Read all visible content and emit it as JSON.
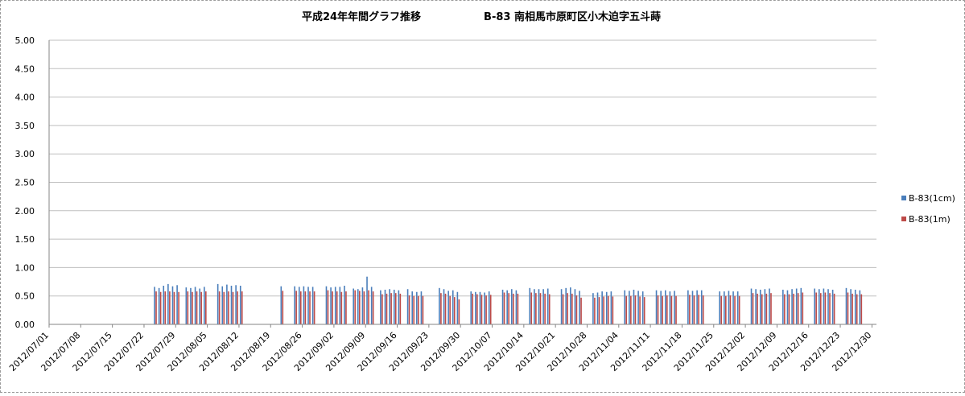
{
  "chart_data": {
    "type": "bar",
    "title": "平成24年年間グラフ推移 B-83 南相馬市原町区小木迫字五斗蒔",
    "title_parts": [
      "平成24年年間グラフ推移",
      "B-83 南相馬市原町区小木迫字五斗蒔"
    ],
    "xlabel": "",
    "ylabel": "",
    "ylim": [
      0,
      5.0
    ],
    "y_ticks": [
      "0.00",
      "0.50",
      "1.00",
      "1.50",
      "2.00",
      "2.50",
      "3.00",
      "3.50",
      "4.00",
      "4.50",
      "5.00"
    ],
    "x_tick_labels": [
      "2012/07/01",
      "2012/07/08",
      "2012/07/15",
      "2012/07/22",
      "2012/07/29",
      "2012/08/05",
      "2012/08/12",
      "2012/08/19",
      "2012/08/26",
      "2012/09/02",
      "2012/09/09",
      "2012/09/16",
      "2012/09/23",
      "2012/09/30",
      "2012/10/07",
      "2012/10/14",
      "2012/10/21",
      "2012/10/28",
      "2012/11/04",
      "2012/11/11",
      "2012/11/18",
      "2012/11/25",
      "2012/12/02",
      "2012/12/09",
      "2012/12/16",
      "2012/12/23",
      "2012/12/30"
    ],
    "x_range": [
      "2012/07/01",
      "2012/12/30"
    ],
    "grid": "horizontal",
    "legend_position": "right",
    "colors": {
      "series1": "#4a7ebb",
      "series2": "#be4b48",
      "grid": "#bfbfbf",
      "axis": "#868686"
    },
    "series": [
      {
        "name": "B-83(1cm)",
        "values": [
          [
            "2012/07/24",
            0.66
          ],
          [
            "2012/07/25",
            0.64
          ],
          [
            "2012/07/26",
            0.68
          ],
          [
            "2012/07/27",
            0.71
          ],
          [
            "2012/07/28",
            0.67
          ],
          [
            "2012/07/29",
            0.69
          ],
          [
            "2012/07/31",
            0.65
          ],
          [
            "2012/08/01",
            0.64
          ],
          [
            "2012/08/02",
            0.66
          ],
          [
            "2012/08/03",
            0.63
          ],
          [
            "2012/08/04",
            0.66
          ],
          [
            "2012/08/07",
            0.71
          ],
          [
            "2012/08/08",
            0.67
          ],
          [
            "2012/08/09",
            0.7
          ],
          [
            "2012/08/10",
            0.68
          ],
          [
            "2012/08/11",
            0.69
          ],
          [
            "2012/08/12",
            0.68
          ],
          [
            "2012/08/21",
            0.67
          ],
          [
            "2012/08/24",
            0.67
          ],
          [
            "2012/08/25",
            0.66
          ],
          [
            "2012/08/26",
            0.67
          ],
          [
            "2012/08/27",
            0.66
          ],
          [
            "2012/08/28",
            0.66
          ],
          [
            "2012/08/31",
            0.67
          ],
          [
            "2012/09/01",
            0.65
          ],
          [
            "2012/09/02",
            0.66
          ],
          [
            "2012/09/03",
            0.66
          ],
          [
            "2012/09/04",
            0.68
          ],
          [
            "2012/09/06",
            0.63
          ],
          [
            "2012/09/07",
            0.62
          ],
          [
            "2012/09/08",
            0.65
          ],
          [
            "2012/09/09",
            0.84
          ],
          [
            "2012/09/10",
            0.66
          ],
          [
            "2012/09/12",
            0.6
          ],
          [
            "2012/09/13",
            0.61
          ],
          [
            "2012/09/14",
            0.62
          ],
          [
            "2012/09/15",
            0.61
          ],
          [
            "2012/09/16",
            0.6
          ],
          [
            "2012/09/18",
            0.62
          ],
          [
            "2012/09/19",
            0.58
          ],
          [
            "2012/09/20",
            0.57
          ],
          [
            "2012/09/21",
            0.58
          ],
          [
            "2012/09/25",
            0.64
          ],
          [
            "2012/09/26",
            0.62
          ],
          [
            "2012/09/27",
            0.59
          ],
          [
            "2012/09/28",
            0.6
          ],
          [
            "2012/09/29",
            0.57
          ],
          [
            "2012/10/02",
            0.58
          ],
          [
            "2012/10/03",
            0.57
          ],
          [
            "2012/10/04",
            0.57
          ],
          [
            "2012/10/05",
            0.56
          ],
          [
            "2012/10/06",
            0.58
          ],
          [
            "2012/10/09",
            0.61
          ],
          [
            "2012/10/10",
            0.6
          ],
          [
            "2012/10/11",
            0.62
          ],
          [
            "2012/10/12",
            0.6
          ],
          [
            "2012/10/15",
            0.64
          ],
          [
            "2012/10/16",
            0.62
          ],
          [
            "2012/10/17",
            0.62
          ],
          [
            "2012/10/18",
            0.62
          ],
          [
            "2012/10/19",
            0.63
          ],
          [
            "2012/10/22",
            0.62
          ],
          [
            "2012/10/23",
            0.64
          ],
          [
            "2012/10/24",
            0.65
          ],
          [
            "2012/10/25",
            0.62
          ],
          [
            "2012/10/26",
            0.59
          ],
          [
            "2012/10/29",
            0.55
          ],
          [
            "2012/10/30",
            0.56
          ],
          [
            "2012/10/31",
            0.58
          ],
          [
            "2012/11/01",
            0.57
          ],
          [
            "2012/11/02",
            0.58
          ],
          [
            "2012/11/05",
            0.6
          ],
          [
            "2012/11/06",
            0.59
          ],
          [
            "2012/11/07",
            0.61
          ],
          [
            "2012/11/08",
            0.59
          ],
          [
            "2012/11/09",
            0.58
          ],
          [
            "2012/11/12",
            0.6
          ],
          [
            "2012/11/13",
            0.59
          ],
          [
            "2012/11/14",
            0.6
          ],
          [
            "2012/11/15",
            0.58
          ],
          [
            "2012/11/16",
            0.59
          ],
          [
            "2012/11/19",
            0.6
          ],
          [
            "2012/11/20",
            0.59
          ],
          [
            "2012/11/21",
            0.6
          ],
          [
            "2012/11/22",
            0.6
          ],
          [
            "2012/11/26",
            0.58
          ],
          [
            "2012/11/27",
            0.58
          ],
          [
            "2012/11/28",
            0.59
          ],
          [
            "2012/11/29",
            0.58
          ],
          [
            "2012/11/30",
            0.58
          ],
          [
            "2012/12/03",
            0.63
          ],
          [
            "2012/12/04",
            0.62
          ],
          [
            "2012/12/05",
            0.61
          ],
          [
            "2012/12/06",
            0.62
          ],
          [
            "2012/12/07",
            0.63
          ],
          [
            "2012/12/10",
            0.61
          ],
          [
            "2012/12/11",
            0.6
          ],
          [
            "2012/12/12",
            0.62
          ],
          [
            "2012/12/13",
            0.63
          ],
          [
            "2012/12/14",
            0.64
          ],
          [
            "2012/12/17",
            0.63
          ],
          [
            "2012/12/18",
            0.62
          ],
          [
            "2012/12/19",
            0.63
          ],
          [
            "2012/12/20",
            0.62
          ],
          [
            "2012/12/21",
            0.61
          ],
          [
            "2012/12/24",
            0.64
          ],
          [
            "2012/12/25",
            0.62
          ],
          [
            "2012/12/26",
            0.61
          ],
          [
            "2012/12/27",
            0.6
          ]
        ]
      },
      {
        "name": "B-83(1m)",
        "values": [
          [
            "2012/07/24",
            0.58
          ],
          [
            "2012/07/25",
            0.57
          ],
          [
            "2012/07/26",
            0.58
          ],
          [
            "2012/07/27",
            0.58
          ],
          [
            "2012/07/28",
            0.57
          ],
          [
            "2012/07/29",
            0.57
          ],
          [
            "2012/07/31",
            0.58
          ],
          [
            "2012/08/01",
            0.57
          ],
          [
            "2012/08/02",
            0.58
          ],
          [
            "2012/08/03",
            0.57
          ],
          [
            "2012/08/04",
            0.58
          ],
          [
            "2012/08/07",
            0.58
          ],
          [
            "2012/08/08",
            0.57
          ],
          [
            "2012/08/09",
            0.58
          ],
          [
            "2012/08/10",
            0.57
          ],
          [
            "2012/08/11",
            0.58
          ],
          [
            "2012/08/12",
            0.58
          ],
          [
            "2012/08/21",
            0.59
          ],
          [
            "2012/08/24",
            0.59
          ],
          [
            "2012/08/25",
            0.58
          ],
          [
            "2012/08/26",
            0.58
          ],
          [
            "2012/08/27",
            0.58
          ],
          [
            "2012/08/28",
            0.58
          ],
          [
            "2012/08/31",
            0.6
          ],
          [
            "2012/09/01",
            0.58
          ],
          [
            "2012/09/02",
            0.58
          ],
          [
            "2012/09/03",
            0.57
          ],
          [
            "2012/09/04",
            0.58
          ],
          [
            "2012/09/06",
            0.6
          ],
          [
            "2012/09/07",
            0.59
          ],
          [
            "2012/09/08",
            0.58
          ],
          [
            "2012/09/09",
            0.6
          ],
          [
            "2012/09/10",
            0.58
          ],
          [
            "2012/09/12",
            0.53
          ],
          [
            "2012/09/13",
            0.54
          ],
          [
            "2012/09/14",
            0.55
          ],
          [
            "2012/09/15",
            0.55
          ],
          [
            "2012/09/16",
            0.54
          ],
          [
            "2012/09/18",
            0.51
          ],
          [
            "2012/09/19",
            0.5
          ],
          [
            "2012/09/20",
            0.5
          ],
          [
            "2012/09/21",
            0.5
          ],
          [
            "2012/09/25",
            0.55
          ],
          [
            "2012/09/26",
            0.54
          ],
          [
            "2012/09/27",
            0.5
          ],
          [
            "2012/09/28",
            0.48
          ],
          [
            "2012/09/29",
            0.44
          ],
          [
            "2012/10/02",
            0.54
          ],
          [
            "2012/10/03",
            0.53
          ],
          [
            "2012/10/04",
            0.52
          ],
          [
            "2012/10/05",
            0.51
          ],
          [
            "2012/10/06",
            0.52
          ],
          [
            "2012/10/09",
            0.56
          ],
          [
            "2012/10/10",
            0.55
          ],
          [
            "2012/10/11",
            0.54
          ],
          [
            "2012/10/12",
            0.54
          ],
          [
            "2012/10/15",
            0.56
          ],
          [
            "2012/10/16",
            0.55
          ],
          [
            "2012/10/17",
            0.55
          ],
          [
            "2012/10/18",
            0.54
          ],
          [
            "2012/10/19",
            0.53
          ],
          [
            "2012/10/22",
            0.53
          ],
          [
            "2012/10/23",
            0.55
          ],
          [
            "2012/10/24",
            0.54
          ],
          [
            "2012/10/25",
            0.51
          ],
          [
            "2012/10/26",
            0.47
          ],
          [
            "2012/10/29",
            0.47
          ],
          [
            "2012/10/30",
            0.48
          ],
          [
            "2012/10/31",
            0.49
          ],
          [
            "2012/11/01",
            0.5
          ],
          [
            "2012/11/02",
            0.49
          ],
          [
            "2012/11/05",
            0.5
          ],
          [
            "2012/11/06",
            0.5
          ],
          [
            "2012/11/07",
            0.51
          ],
          [
            "2012/11/08",
            0.49
          ],
          [
            "2012/11/09",
            0.48
          ],
          [
            "2012/11/12",
            0.51
          ],
          [
            "2012/11/13",
            0.5
          ],
          [
            "2012/11/14",
            0.51
          ],
          [
            "2012/11/15",
            0.5
          ],
          [
            "2012/11/16",
            0.5
          ],
          [
            "2012/11/19",
            0.52
          ],
          [
            "2012/11/20",
            0.51
          ],
          [
            "2012/11/21",
            0.52
          ],
          [
            "2012/11/22",
            0.51
          ],
          [
            "2012/11/26",
            0.5
          ],
          [
            "2012/11/27",
            0.5
          ],
          [
            "2012/11/28",
            0.51
          ],
          [
            "2012/11/29",
            0.5
          ],
          [
            "2012/11/30",
            0.5
          ],
          [
            "2012/12/03",
            0.55
          ],
          [
            "2012/12/04",
            0.54
          ],
          [
            "2012/12/05",
            0.53
          ],
          [
            "2012/12/06",
            0.54
          ],
          [
            "2012/12/07",
            0.55
          ],
          [
            "2012/12/10",
            0.53
          ],
          [
            "2012/12/11",
            0.53
          ],
          [
            "2012/12/12",
            0.54
          ],
          [
            "2012/12/13",
            0.55
          ],
          [
            "2012/12/14",
            0.56
          ],
          [
            "2012/12/17",
            0.56
          ],
          [
            "2012/12/18",
            0.55
          ],
          [
            "2012/12/19",
            0.56
          ],
          [
            "2012/12/20",
            0.55
          ],
          [
            "2012/12/21",
            0.54
          ],
          [
            "2012/12/24",
            0.56
          ],
          [
            "2012/12/25",
            0.54
          ],
          [
            "2012/12/26",
            0.53
          ],
          [
            "2012/12/27",
            0.53
          ]
        ]
      }
    ]
  }
}
